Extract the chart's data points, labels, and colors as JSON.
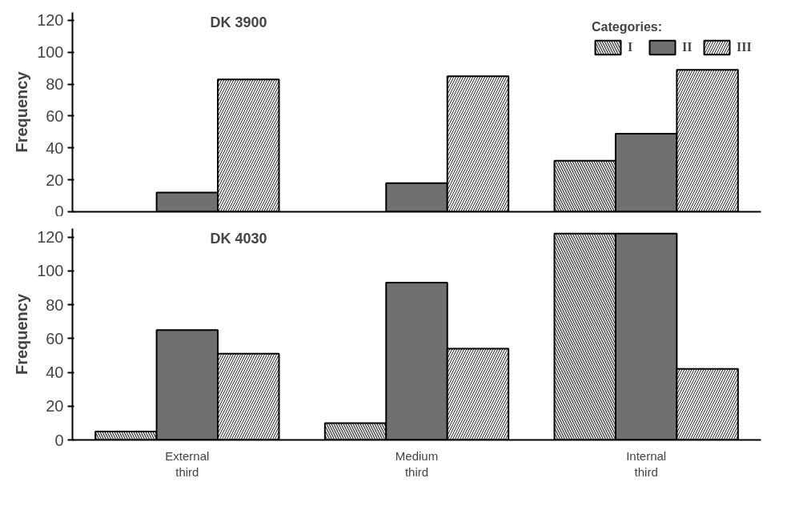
{
  "chart_data": [
    {
      "type": "bar",
      "title": "DK 3900",
      "ylabel": "Frequency",
      "categories": [
        null,
        null,
        null
      ],
      "ylim": [
        0,
        125
      ],
      "yticks": [
        0,
        20,
        40,
        60,
        80,
        100,
        120
      ],
      "tick_labels": "y",
      "grid": false,
      "legend": "top right",
      "legend_title": "Categories:",
      "series": [
        {
          "name": "I",
          "color": "#d9d9d9",
          "values": [
            0,
            0,
            32
          ]
        },
        {
          "name": "II",
          "color": "#707070",
          "values": [
            12,
            18,
            49
          ]
        },
        {
          "name": "III",
          "color": "#f2f2f2",
          "values": [
            83,
            85,
            89
          ]
        }
      ]
    },
    {
      "type": "bar",
      "title": "DK 4030",
      "ylabel": "Frequency",
      "categories": [
        "External third",
        "Medium third",
        "Internal third"
      ],
      "ylim": [
        0,
        125
      ],
      "yticks": [
        0,
        20,
        40,
        60,
        80,
        100,
        120
      ],
      "grid": false,
      "legend": false,
      "series": [
        {
          "color": "#d9d9d9",
          "values": [
            5,
            10,
            122
          ]
        },
        {
          "color": "#707070",
          "values": [
            65,
            93,
            122
          ]
        },
        {
          "color": "#f2f2f2",
          "values": [
            51,
            54,
            42
          ]
        }
      ]
    }
  ]
}
